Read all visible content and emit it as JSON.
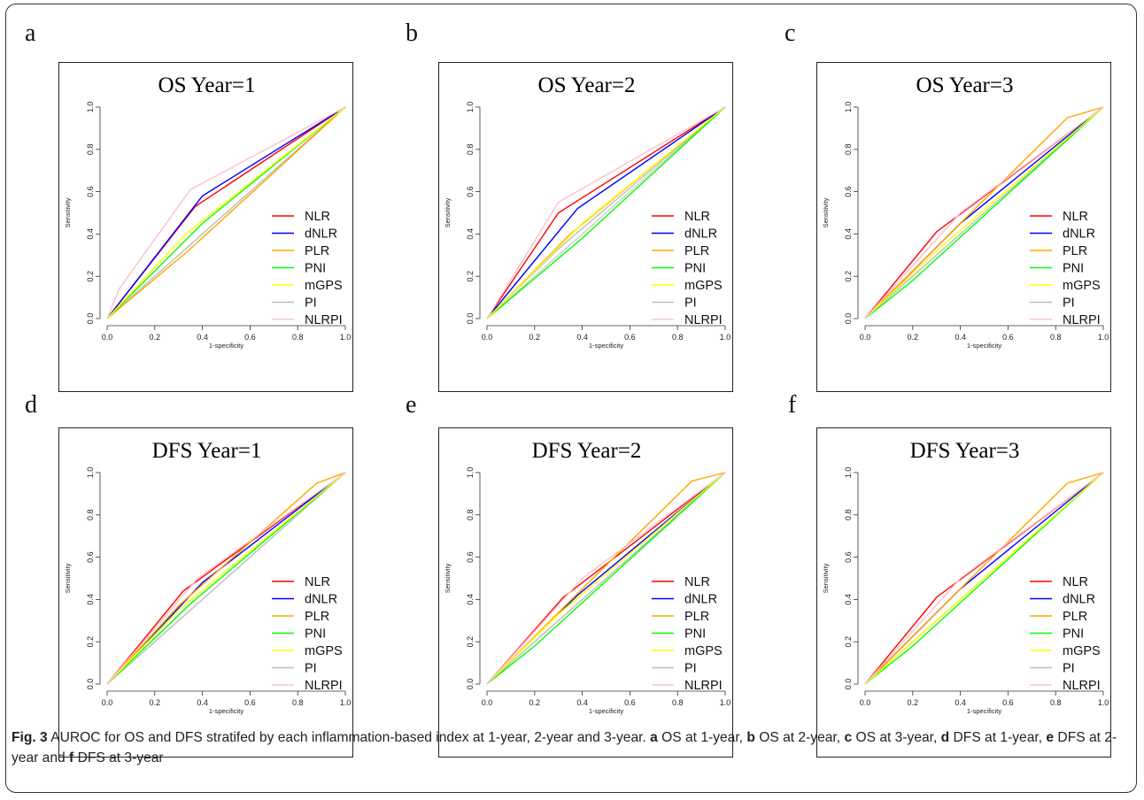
{
  "figure": {
    "caption": {
      "label": "Fig. 3",
      "text": " AUROC for OS and DFS stratifed by each inflammation-based index at 1-year, 2-year and 3-year. ",
      "parts": [
        {
          "letter": "a",
          "text": " OS at 1-year, "
        },
        {
          "letter": "b",
          "text": " OS at 2-year, "
        },
        {
          "letter": "c",
          "text": " OS at 3-year, "
        },
        {
          "letter": "d",
          "text": " DFS at 1-year, "
        },
        {
          "letter": "e",
          "text": " DFS at 2-year and "
        },
        {
          "letter": "f",
          "text": " DFS at 3-year"
        }
      ]
    }
  },
  "chart_data": [
    {
      "panel": "a",
      "type": "line",
      "title": "OS  Year=1",
      "xlabel": "1-specificity",
      "ylabel": "Sensitivity",
      "xlim": [
        0,
        1
      ],
      "ylim": [
        0,
        1
      ],
      "xticks": [
        "0.0",
        "0.2",
        "0.4",
        "0.6",
        "0.8",
        "1.0"
      ],
      "yticks": [
        "0.0",
        "0.2",
        "0.4",
        "0.6",
        "0.8",
        "1.0"
      ],
      "legend_position": "bottom-right",
      "series": [
        {
          "name": "NLR",
          "color": "#ff0000",
          "points": [
            [
              0,
              0
            ],
            [
              0.37,
              0.53
            ],
            [
              1,
              1
            ]
          ]
        },
        {
          "name": "dNLR",
          "color": "#0000ff",
          "points": [
            [
              0,
              0
            ],
            [
              0.4,
              0.58
            ],
            [
              1,
              1
            ]
          ]
        },
        {
          "name": "PLR",
          "color": "#ffa500",
          "points": [
            [
              0,
              0
            ],
            [
              0.34,
              0.32
            ],
            [
              1,
              1
            ]
          ]
        },
        {
          "name": "PNI",
          "color": "#00ff00",
          "points": [
            [
              0,
              0
            ],
            [
              0.4,
              0.45
            ],
            [
              1,
              1
            ]
          ]
        },
        {
          "name": "mGPS",
          "color": "#ffff00",
          "points": [
            [
              0,
              0
            ],
            [
              0.33,
              0.4
            ],
            [
              1,
              1
            ]
          ]
        },
        {
          "name": "PI",
          "color": "#bebebe",
          "points": [
            [
              0,
              0
            ],
            [
              1,
              1
            ]
          ]
        },
        {
          "name": "NLRPI",
          "color": "#ffc0cb",
          "points": [
            [
              0,
              0
            ],
            [
              0.05,
              0.14
            ],
            [
              0.35,
              0.61
            ],
            [
              1,
              1
            ]
          ]
        }
      ]
    },
    {
      "panel": "b",
      "type": "line",
      "title": "OS  Year=2",
      "xlabel": "1-specificity",
      "ylabel": "Sensitivity",
      "xlim": [
        0,
        1
      ],
      "ylim": [
        0,
        1
      ],
      "xticks": [
        "0.0",
        "0.2",
        "0.4",
        "0.6",
        "0.8",
        "1.0"
      ],
      "yticks": [
        "0.0",
        "0.2",
        "0.4",
        "0.6",
        "0.8",
        "1.0"
      ],
      "legend_position": "bottom-right",
      "series": [
        {
          "name": "NLR",
          "color": "#ff0000",
          "points": [
            [
              0,
              0
            ],
            [
              0.3,
              0.5
            ],
            [
              0.93,
              0.95
            ],
            [
              1,
              1
            ]
          ]
        },
        {
          "name": "dNLR",
          "color": "#0000ff",
          "points": [
            [
              0,
              0
            ],
            [
              0.38,
              0.52
            ],
            [
              1,
              1
            ]
          ]
        },
        {
          "name": "PLR",
          "color": "#ffa500",
          "points": [
            [
              0,
              0
            ],
            [
              0.35,
              0.4
            ],
            [
              1,
              1
            ]
          ]
        },
        {
          "name": "PNI",
          "color": "#00ff00",
          "points": [
            [
              0,
              0
            ],
            [
              0.4,
              0.38
            ],
            [
              1,
              1
            ]
          ]
        },
        {
          "name": "mGPS",
          "color": "#ffff00",
          "points": [
            [
              0,
              0
            ],
            [
              0.4,
              0.45
            ],
            [
              1,
              1
            ]
          ]
        },
        {
          "name": "PI",
          "color": "#bebebe",
          "points": [
            [
              0,
              0
            ],
            [
              0.3,
              0.33
            ],
            [
              1,
              1
            ]
          ]
        },
        {
          "name": "NLRPI",
          "color": "#ffc0cb",
          "points": [
            [
              0,
              0
            ],
            [
              0.3,
              0.55
            ],
            [
              1,
              1
            ]
          ]
        }
      ]
    },
    {
      "panel": "c",
      "type": "line",
      "title": "OS  Year=3",
      "xlabel": "1-specificity",
      "ylabel": "Sensitivity",
      "xlim": [
        0,
        1
      ],
      "ylim": [
        0,
        1
      ],
      "xticks": [
        "0.0",
        "0.2",
        "0.4",
        "0.6",
        "0.8",
        "1.0"
      ],
      "yticks": [
        "0.0",
        "0.2",
        "0.4",
        "0.6",
        "0.8",
        "1.0"
      ],
      "legend_position": "bottom-right",
      "series": [
        {
          "name": "NLR",
          "color": "#ff0000",
          "points": [
            [
              0,
              0
            ],
            [
              0.3,
              0.41
            ],
            [
              1,
              1
            ]
          ]
        },
        {
          "name": "dNLR",
          "color": "#0000ff",
          "points": [
            [
              0,
              0
            ],
            [
              0.4,
              0.45
            ],
            [
              1,
              1
            ]
          ]
        },
        {
          "name": "PLR",
          "color": "#ffa500",
          "points": [
            [
              0,
              0
            ],
            [
              0.4,
              0.45
            ],
            [
              0.85,
              0.95
            ],
            [
              1,
              1
            ]
          ]
        },
        {
          "name": "PNI",
          "color": "#00ff00",
          "points": [
            [
              0,
              0
            ],
            [
              0.2,
              0.18
            ],
            [
              1,
              1
            ]
          ]
        },
        {
          "name": "mGPS",
          "color": "#ffff00",
          "points": [
            [
              0,
              0
            ],
            [
              0.3,
              0.32
            ],
            [
              1,
              1
            ]
          ]
        },
        {
          "name": "PI",
          "color": "#bebebe",
          "points": [
            [
              0,
              0
            ],
            [
              1,
              1
            ]
          ]
        },
        {
          "name": "NLRPI",
          "color": "#ffc0cb",
          "points": [
            [
              0,
              0
            ],
            [
              0.4,
              0.5
            ],
            [
              1,
              1
            ]
          ]
        }
      ]
    },
    {
      "panel": "d",
      "type": "line",
      "title": "DFS  Year=1",
      "xlabel": "1-specificity",
      "ylabel": "Sensitivity",
      "xlim": [
        0,
        1
      ],
      "ylim": [
        0,
        1
      ],
      "xticks": [
        "0.0",
        "0.2",
        "0.4",
        "0.6",
        "0.8",
        "1.0"
      ],
      "yticks": [
        "0.0",
        "0.2",
        "0.4",
        "0.6",
        "0.8",
        "1.0"
      ],
      "legend_position": "bottom-right",
      "series": [
        {
          "name": "NLR",
          "color": "#ff0000",
          "points": [
            [
              0,
              0
            ],
            [
              0.32,
              0.44
            ],
            [
              1,
              1
            ]
          ]
        },
        {
          "name": "dNLR",
          "color": "#0000ff",
          "points": [
            [
              0,
              0
            ],
            [
              0.4,
              0.48
            ],
            [
              1,
              1
            ]
          ]
        },
        {
          "name": "PLR",
          "color": "#ffa500",
          "points": [
            [
              0,
              0
            ],
            [
              0.3,
              0.37
            ],
            [
              0.88,
              0.95
            ],
            [
              1,
              1
            ]
          ]
        },
        {
          "name": "PNI",
          "color": "#00ff00",
          "points": [
            [
              0,
              0
            ],
            [
              0.35,
              0.38
            ],
            [
              1,
              1
            ]
          ]
        },
        {
          "name": "mGPS",
          "color": "#ffff00",
          "points": [
            [
              0,
              0
            ],
            [
              0.3,
              0.35
            ],
            [
              1,
              1
            ]
          ]
        },
        {
          "name": "PI",
          "color": "#bebebe",
          "points": [
            [
              0,
              0
            ],
            [
              1,
              1
            ]
          ]
        },
        {
          "name": "NLRPI",
          "color": "#ffc0cb",
          "points": [
            [
              0,
              0
            ],
            [
              0.38,
              0.5
            ],
            [
              1,
              1
            ]
          ]
        }
      ]
    },
    {
      "panel": "e",
      "type": "line",
      "title": "DFS  Year=2",
      "xlabel": "1-specificity",
      "ylabel": "Sensitivity",
      "xlim": [
        0,
        1
      ],
      "ylim": [
        0,
        1
      ],
      "xticks": [
        "0.0",
        "0.2",
        "0.4",
        "0.6",
        "0.8",
        "1.0"
      ],
      "yticks": [
        "0.0",
        "0.2",
        "0.4",
        "0.6",
        "0.8",
        "1.0"
      ],
      "legend_position": "bottom-right",
      "series": [
        {
          "name": "NLR",
          "color": "#ff0000",
          "points": [
            [
              0,
              0
            ],
            [
              0.32,
              0.41
            ],
            [
              1,
              1
            ]
          ]
        },
        {
          "name": "dNLR",
          "color": "#0000ff",
          "points": [
            [
              0,
              0
            ],
            [
              0.38,
              0.42
            ],
            [
              1,
              1
            ]
          ]
        },
        {
          "name": "PLR",
          "color": "#ffa500",
          "points": [
            [
              0,
              0
            ],
            [
              0.4,
              0.45
            ],
            [
              0.86,
              0.96
            ],
            [
              1,
              1
            ]
          ]
        },
        {
          "name": "PNI",
          "color": "#00ff00",
          "points": [
            [
              0,
              0
            ],
            [
              0.2,
              0.18
            ],
            [
              1,
              1
            ]
          ]
        },
        {
          "name": "mGPS",
          "color": "#ffff00",
          "points": [
            [
              0,
              0
            ],
            [
              0.3,
              0.33
            ],
            [
              1,
              1
            ]
          ]
        },
        {
          "name": "PI",
          "color": "#bebebe",
          "points": [
            [
              0,
              0
            ],
            [
              1,
              1
            ]
          ]
        },
        {
          "name": "NLRPI",
          "color": "#ffc0cb",
          "points": [
            [
              0,
              0
            ],
            [
              0.4,
              0.5
            ],
            [
              1,
              1
            ]
          ]
        }
      ]
    },
    {
      "panel": "f",
      "type": "line",
      "title": "DFS  Year=3",
      "xlabel": "1-specificity",
      "ylabel": "Sensitivity",
      "xlim": [
        0,
        1
      ],
      "ylim": [
        0,
        1
      ],
      "xticks": [
        "0.0",
        "0.2",
        "0.4",
        "0.6",
        "0.8",
        "1.0"
      ],
      "yticks": [
        "0.0",
        "0.2",
        "0.4",
        "0.6",
        "0.8",
        "1.0"
      ],
      "legend_position": "bottom-right",
      "series": [
        {
          "name": "NLR",
          "color": "#ff0000",
          "points": [
            [
              0,
              0
            ],
            [
              0.3,
              0.41
            ],
            [
              1,
              1
            ]
          ]
        },
        {
          "name": "dNLR",
          "color": "#0000ff",
          "points": [
            [
              0,
              0
            ],
            [
              0.4,
              0.45
            ],
            [
              1,
              1
            ]
          ]
        },
        {
          "name": "PLR",
          "color": "#ffa500",
          "points": [
            [
              0,
              0
            ],
            [
              0.4,
              0.45
            ],
            [
              0.85,
              0.95
            ],
            [
              1,
              1
            ]
          ]
        },
        {
          "name": "PNI",
          "color": "#00ff00",
          "points": [
            [
              0,
              0
            ],
            [
              0.2,
              0.18
            ],
            [
              1,
              1
            ]
          ]
        },
        {
          "name": "mGPS",
          "color": "#ffff00",
          "points": [
            [
              0,
              0
            ],
            [
              0.3,
              0.3
            ],
            [
              1,
              1
            ]
          ]
        },
        {
          "name": "PI",
          "color": "#bebebe",
          "points": [
            [
              0,
              0
            ],
            [
              1,
              1
            ]
          ]
        },
        {
          "name": "NLRPI",
          "color": "#ffc0cb",
          "points": [
            [
              0,
              0
            ],
            [
              0.4,
              0.5
            ],
            [
              1,
              1
            ]
          ]
        }
      ]
    }
  ]
}
